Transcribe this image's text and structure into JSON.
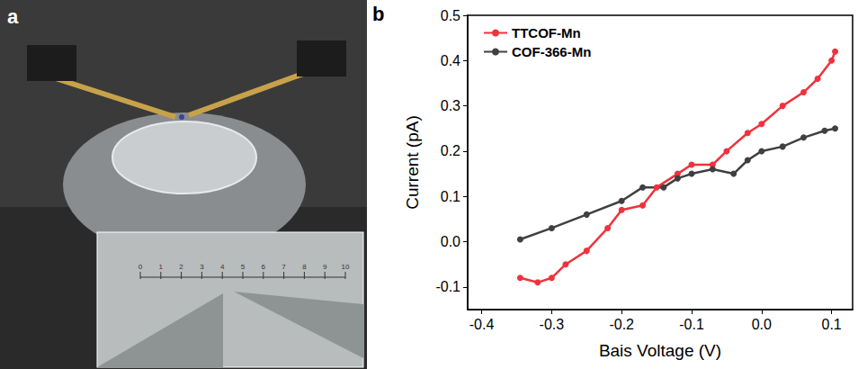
{
  "panel_a": {
    "label": "a",
    "inset_scale": [
      0,
      1,
      2,
      3,
      4,
      5,
      6,
      7,
      8,
      9,
      10
    ]
  },
  "chart_data": {
    "type": "line",
    "panel_label": "b",
    "x_label": "Bais Voltage (V)",
    "y_label": "Current (pA)",
    "xlim": [
      -0.42,
      0.13
    ],
    "xticks": [
      -0.4,
      -0.3,
      -0.2,
      -0.1,
      {
        "value": 0,
        "label": "0.0"
      },
      0.1
    ],
    "ylim": [
      -0.15,
      0.5
    ],
    "yticks": [
      -0.1,
      {
        "value": 0,
        "label": "0.0"
      },
      0.1,
      0.2,
      0.3,
      0.4,
      0.5
    ],
    "grid": false,
    "legend": "top-left",
    "marker": "circle",
    "line_style": "solid",
    "series": [
      {
        "name": "TTCOF-Mn",
        "color": "#f0323c",
        "x": [
          -0.345,
          -0.32,
          -0.3,
          -0.28,
          -0.25,
          -0.22,
          -0.2,
          -0.17,
          -0.15,
          -0.12,
          -0.1,
          -0.07,
          -0.05,
          -0.02,
          0.0,
          0.03,
          0.06,
          0.08,
          0.1,
          0.105
        ],
        "values": [
          -0.08,
          -0.09,
          -0.08,
          -0.05,
          -0.02,
          0.03,
          0.07,
          0.08,
          0.12,
          0.15,
          0.17,
          0.17,
          0.2,
          0.24,
          0.26,
          0.3,
          0.33,
          0.36,
          0.4,
          0.42
        ]
      },
      {
        "name": "COF-366-Mn",
        "color": "#404040",
        "x": [
          -0.345,
          -0.3,
          -0.25,
          -0.2,
          -0.17,
          -0.14,
          -0.12,
          -0.1,
          -0.07,
          -0.04,
          -0.02,
          0.0,
          0.03,
          0.06,
          0.09,
          0.105
        ],
        "values": [
          0.005,
          0.03,
          0.06,
          0.09,
          0.12,
          0.12,
          0.14,
          0.15,
          0.16,
          0.15,
          0.18,
          0.2,
          0.21,
          0.23,
          0.245,
          0.25
        ]
      }
    ]
  }
}
